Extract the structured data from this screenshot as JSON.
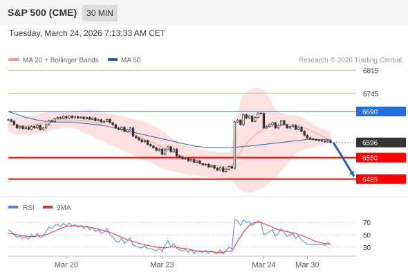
{
  "header": {
    "title": "S&P 500 (CME)",
    "timeframe": "30 MIN"
  },
  "datetime": "Tuesday, March 24, 2026 7:13:33 AM CET",
  "legend": {
    "bb_label": "MA 20 + Bollinger Bands",
    "ma50_label": "MA 50",
    "copyright": "Research © 2026 Trading Central"
  },
  "rsi_legend": {
    "rsi_label": "RSI",
    "ma_label": "9MA"
  },
  "colors": {
    "bb": "#f59a9a",
    "ma50": "#2f5fa7",
    "green": "#9acd68",
    "support": "#ff0000",
    "res_blue": "#1f6fe5",
    "current": "#333333",
    "arrow": "#2a5fa8",
    "rsi": "#5a7fdc",
    "rsi_ma": "#e03030"
  },
  "chart_data": [
    {
      "type": "candlestick",
      "name": "price",
      "ylim": [
        6440,
        6860
      ],
      "x_ticks": [
        "Mar 20",
        "Mar 23",
        "Mar 24",
        "Mar 30"
      ],
      "levels": [
        {
          "value": 6815,
          "label": "6815",
          "kind": "resistance-green"
        },
        {
          "value": 6745,
          "label": "6745",
          "kind": "resistance-green"
        },
        {
          "value": 6690,
          "label": "6690",
          "kind": "resistance-blue"
        },
        {
          "value": 6596,
          "label": "6596",
          "kind": "current"
        },
        {
          "value": 6550,
          "label": "6550",
          "kind": "support"
        },
        {
          "value": 6485,
          "label": "6485",
          "kind": "support"
        }
      ],
      "close": [
        6665,
        6660,
        6650,
        6640,
        6645,
        6638,
        6642,
        6636,
        6645,
        6640,
        6648,
        6635,
        6640,
        6650,
        6662,
        6660,
        6668,
        6672,
        6669,
        6675,
        6670,
        6676,
        6671,
        6674,
        6670,
        6673,
        6668,
        6672,
        6666,
        6670,
        6662,
        6665,
        6658,
        6660,
        6666,
        6656,
        6650,
        6640,
        6636,
        6642,
        6630,
        6634,
        6640,
        6615,
        6610,
        6604,
        6598,
        6602,
        6590,
        6586,
        6580,
        6572,
        6576,
        6560,
        6575,
        6583,
        6568,
        6576,
        6555,
        6552,
        6546,
        6548,
        6540,
        6545,
        6536,
        6540,
        6532,
        6528,
        6530,
        6522,
        6526,
        6518,
        6512,
        6520,
        6508,
        6515,
        6523,
        6518,
        6658,
        6664,
        6650,
        6680,
        6670,
        6676,
        6660,
        6672,
        6685,
        6684,
        6640,
        6645,
        6650,
        6656,
        6640,
        6648,
        6662,
        6650,
        6640,
        6644,
        6648,
        6636,
        6642,
        6630,
        6618,
        6610,
        6607,
        6605,
        6603,
        6602,
        6600,
        6598,
        6602,
        6596
      ],
      "bb_upper": [
        6670,
        6672,
        6673,
        6674,
        6675,
        6676,
        6676,
        6677,
        6678,
        6680,
        6682,
        6684,
        6686,
        6688,
        6690,
        6690,
        6690,
        6690,
        6690,
        6689,
        6688,
        6688,
        6688,
        6690,
        6692,
        6693,
        6694,
        6695,
        6696,
        6695,
        6694,
        6692,
        6690,
        6688,
        6686,
        6684,
        6682,
        6680,
        6678,
        6676,
        6674,
        6672,
        6670,
        6668,
        6666,
        6664,
        6662,
        6658,
        6654,
        6650,
        6646,
        6642,
        6638,
        6632,
        6625,
        6618,
        6612,
        6606,
        6600,
        6594,
        6590,
        6586,
        6584,
        6582,
        6580,
        6578,
        6576,
        6574,
        6572,
        6570,
        6569,
        6568,
        6567,
        6566,
        6566,
        6566,
        6566,
        6580,
        6640,
        6690,
        6720,
        6740,
        6750,
        6755,
        6758,
        6760,
        6761,
        6760,
        6755,
        6745,
        6730,
        6710,
        6698,
        6690,
        6686,
        6682,
        6680,
        6680,
        6680,
        6678,
        6676,
        6672,
        6668,
        6662,
        6656,
        6650,
        6646,
        6642,
        6638,
        6636,
        6632,
        6628
      ],
      "bb_lower": [
        6630,
        6626,
        6622,
        6620,
        6618,
        6618,
        6618,
        6618,
        6620,
        6622,
        6624,
        6626,
        6628,
        6630,
        6632,
        6634,
        6636,
        6638,
        6640,
        6642,
        6642,
        6642,
        6640,
        6638,
        6634,
        6630,
        6626,
        6622,
        6618,
        6614,
        6610,
        6606,
        6602,
        6598,
        6594,
        6590,
        6586,
        6582,
        6578,
        6574,
        6570,
        6566,
        6562,
        6558,
        6554,
        6550,
        6546,
        6542,
        6538,
        6534,
        6530,
        6526,
        6522,
        6518,
        6515,
        6512,
        6510,
        6508,
        6506,
        6504,
        6502,
        6500,
        6498,
        6497,
        6496,
        6495,
        6494,
        6493,
        6492,
        6491,
        6490,
        6489,
        6488,
        6488,
        6488,
        6488,
        6486,
        6480,
        6470,
        6460,
        6452,
        6446,
        6444,
        6444,
        6446,
        6448,
        6452,
        6456,
        6460,
        6466,
        6474,
        6482,
        6490,
        6500,
        6510,
        6520,
        6530,
        6540,
        6552,
        6562,
        6568,
        6572,
        6576,
        6578,
        6580,
        6582,
        6584,
        6586,
        6588,
        6590,
        6592,
        6594
      ],
      "ma20": [
        6650,
        6649,
        6648,
        6647,
        6646,
        6646,
        6646,
        6646,
        6648,
        6650,
        6652,
        6654,
        6656,
        6658,
        6660,
        6661,
        6662,
        6663,
        6664,
        6664,
        6664,
        6664,
        6664,
        6664,
        6663,
        6662,
        6661,
        6660,
        6658,
        6656,
        6654,
        6652,
        6650,
        6648,
        6646,
        6644,
        6642,
        6639,
        6636,
        6633,
        6630,
        6627,
        6624,
        6621,
        6618,
        6614,
        6610,
        6606,
        6602,
        6598,
        6594,
        6590,
        6586,
        6582,
        6578,
        6574,
        6570,
        6566,
        6562,
        6558,
        6554,
        6550,
        6546,
        6543,
        6540,
        6537,
        6534,
        6532,
        6530,
        6528,
        6527,
        6526,
        6525,
        6524,
        6523,
        6522,
        6521,
        6526,
        6540,
        6554,
        6568,
        6580,
        6592,
        6602,
        6610,
        6618,
        6626,
        6632,
        6638,
        6641,
        6643,
        6645,
        6646,
        6647,
        6648,
        6649,
        6650,
        6650,
        6650,
        6648,
        6646,
        6644,
        6640,
        6636,
        6632,
        6628,
        6624,
        6620,
        6616,
        6612,
        6608,
        6604
      ],
      "ma50": [
        6690,
        6687,
        6684,
        6681,
        6678,
        6675,
        6672,
        6670,
        6668,
        6666,
        6664,
        6662,
        6661,
        6660,
        6659,
        6658,
        6658,
        6658,
        6658,
        6658,
        6658,
        6658,
        6658,
        6657,
        6656,
        6655,
        6654,
        6653,
        6652,
        6651,
        6650,
        6649,
        6648,
        6647,
        6645,
        6643,
        6641,
        6639,
        6637,
        6635,
        6633,
        6631,
        6629,
        6627,
        6625,
        6623,
        6621,
        6619,
        6617,
        6615,
        6613,
        6611,
        6609,
        6607,
        6605,
        6603,
        6601,
        6599,
        6597,
        6595,
        6593,
        6591,
        6589,
        6587,
        6585,
        6584,
        6583,
        6582,
        6581,
        6580,
        6580,
        6580,
        6580,
        6580,
        6580,
        6580,
        6580,
        6580,
        6581,
        6582,
        6583,
        6584,
        6585,
        6585,
        6586,
        6587,
        6588,
        6589,
        6590,
        6591,
        6592,
        6593,
        6594,
        6595,
        6596,
        6597,
        6598,
        6599,
        6600,
        6601,
        6602,
        6603,
        6604,
        6605,
        6605,
        6605,
        6605,
        6605,
        6605,
        6605,
        6605,
        6605
      ],
      "projection": [
        6596,
        6485
      ]
    },
    {
      "type": "line",
      "name": "rsi",
      "ylim": [
        20,
        80
      ],
      "y_ticks": [
        70,
        50,
        30
      ],
      "series": [
        {
          "name": "RSI",
          "values": [
            58,
            55,
            50,
            45,
            48,
            44,
            47,
            43,
            50,
            46,
            52,
            45,
            48,
            55,
            62,
            60,
            65,
            67,
            63,
            68,
            64,
            69,
            64,
            66,
            62,
            65,
            60,
            64,
            58,
            62,
            55,
            58,
            52,
            54,
            60,
            50,
            46,
            40,
            38,
            44,
            36,
            40,
            45,
            33,
            32,
            30,
            29,
            33,
            27,
            28,
            26,
            24,
            28,
            23,
            34,
            40,
            30,
            36,
            28,
            26,
            24,
            27,
            22,
            26,
            20,
            24,
            23,
            22,
            25,
            20,
            24,
            21,
            20,
            26,
            19,
            25,
            30,
            27,
            75,
            72,
            65,
            74,
            70,
            71,
            65,
            68,
            72,
            70,
            50,
            52,
            55,
            58,
            48,
            52,
            60,
            54,
            47,
            50,
            52,
            44,
            48,
            42,
            38,
            35,
            35,
            34,
            34,
            34,
            34,
            33,
            38,
            34
          ]
        },
        {
          "name": "9MA",
          "values": [
            52,
            52,
            51,
            50,
            49,
            48,
            48,
            47,
            47,
            47,
            48,
            48,
            49,
            50,
            52,
            54,
            56,
            58,
            60,
            62,
            63,
            64,
            64,
            65,
            64,
            64,
            63,
            63,
            62,
            61,
            60,
            59,
            57,
            56,
            55,
            54,
            52,
            50,
            48,
            46,
            44,
            42,
            41,
            39,
            38,
            36,
            35,
            34,
            33,
            32,
            31,
            30,
            30,
            29,
            29,
            30,
            30,
            31,
            30,
            29,
            28,
            28,
            27,
            26,
            25,
            24,
            24,
            23,
            23,
            23,
            23,
            22,
            22,
            22,
            22,
            23,
            23,
            24,
            32,
            40,
            47,
            54,
            60,
            65,
            68,
            70,
            70,
            70,
            68,
            66,
            64,
            62,
            60,
            58,
            57,
            56,
            55,
            54,
            53,
            52,
            50,
            49,
            47,
            45,
            43,
            41,
            39,
            38,
            37,
            36,
            35,
            35
          ]
        }
      ]
    }
  ]
}
